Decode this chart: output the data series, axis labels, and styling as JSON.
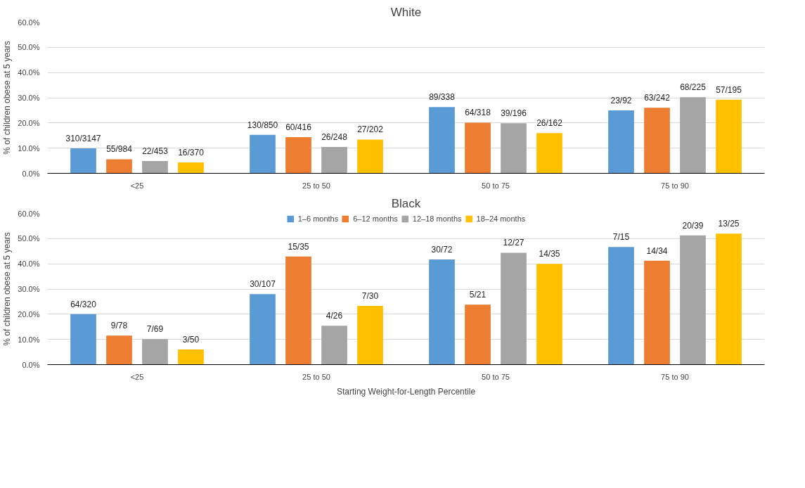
{
  "chart_data": [
    {
      "type": "bar",
      "title": "White",
      "ylabel": "% of children obese at 5 years",
      "categories": [
        "<25",
        "25 to 50",
        "50 to 75",
        "75 to 90"
      ],
      "ylim": [
        0,
        60
      ],
      "yticks": [
        {
          "value": 0,
          "label": "0.0%"
        },
        {
          "value": 10,
          "label": "10.0%"
        },
        {
          "value": 20,
          "label": "20.0%"
        },
        {
          "value": 30,
          "label": "30.0%"
        },
        {
          "value": 40,
          "label": "40.0%"
        },
        {
          "value": 50,
          "label": "50.0%"
        },
        {
          "value": 60,
          "label": "60.0%"
        }
      ],
      "grid": "y",
      "series": [
        {
          "color": "#5b9bd5",
          "values": [
            9.9,
            15.3,
            26.3,
            25.0
          ],
          "value_labels": [
            "310/3147",
            "130/850",
            "89/338",
            "23/92"
          ]
        },
        {
          "color": "#ed7d31",
          "values": [
            5.6,
            14.4,
            20.1,
            26.0
          ],
          "value_labels": [
            "55/984",
            "60/416",
            "64/318",
            "63/242"
          ]
        },
        {
          "color": "#a5a5a5",
          "values": [
            4.9,
            10.5,
            19.9,
            30.2
          ],
          "value_labels": [
            "22/453",
            "26/248",
            "39/196",
            "68/225"
          ]
        },
        {
          "color": "#ffc000",
          "values": [
            4.3,
            13.4,
            16.0,
            29.2
          ],
          "value_labels": [
            "16/370",
            "27/202",
            "26/162",
            "57/195"
          ]
        }
      ]
    },
    {
      "type": "bar",
      "title": "Black",
      "ylabel": "% of children obese at 5 years",
      "xlabel": "Starting Weight-for-Length Percentile",
      "categories": [
        "<25",
        "25 to 50",
        "50 to 75",
        "75 to 90"
      ],
      "ylim": [
        0,
        60
      ],
      "yticks": [
        {
          "value": 0,
          "label": "0.0%"
        },
        {
          "value": 10,
          "label": "10.0%"
        },
        {
          "value": 20,
          "label": "20.0%"
        },
        {
          "value": 30,
          "label": "30.0%"
        },
        {
          "value": 40,
          "label": "40.0%"
        },
        {
          "value": 50,
          "label": "50.0%"
        },
        {
          "value": 60,
          "label": "60.0%"
        }
      ],
      "grid": "y",
      "legend": "top",
      "series": [
        {
          "name": "1–6 months",
          "color": "#5b9bd5",
          "values": [
            20.0,
            28.0,
            41.7,
            46.7
          ],
          "value_labels": [
            "64/320",
            "30/107",
            "30/72",
            "7/15"
          ]
        },
        {
          "name": "6–12 months",
          "color": "#ed7d31",
          "values": [
            11.5,
            42.9,
            23.8,
            41.2
          ],
          "value_labels": [
            "9/78",
            "15/35",
            "5/21",
            "14/34"
          ]
        },
        {
          "name": "12–18 months",
          "color": "#a5a5a5",
          "values": [
            10.1,
            15.4,
            44.4,
            51.3
          ],
          "value_labels": [
            "7/69",
            "4/26",
            "12/27",
            "20/39"
          ]
        },
        {
          "name": "18–24 months",
          "color": "#ffc000",
          "values": [
            6.0,
            23.3,
            40.0,
            52.0
          ],
          "value_labels": [
            "3/50",
            "7/30",
            "14/35",
            "13/25"
          ]
        }
      ]
    }
  ]
}
